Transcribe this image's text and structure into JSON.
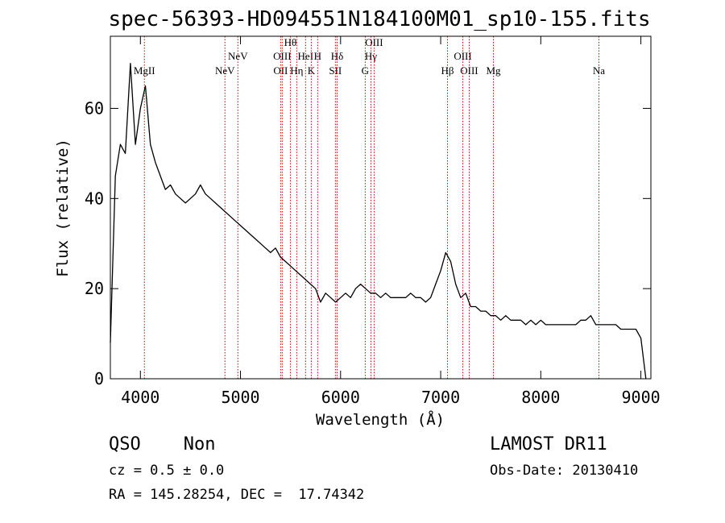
{
  "chart_data": {
    "type": "line",
    "title": "spec-56393-HD094551N184100M01_sp10-155.fits",
    "x_label": "Wavelength (Å)",
    "y_label": "Flux (relative)",
    "xlim": [
      3700,
      9100
    ],
    "ylim": [
      0,
      76
    ],
    "xticks": [
      4000,
      5000,
      6000,
      7000,
      8000,
      9000
    ],
    "yticks": [
      0,
      20,
      40,
      60
    ],
    "x": [
      3700,
      3750,
      3800,
      3850,
      3900,
      3950,
      4000,
      4050,
      4100,
      4150,
      4200,
      4250,
      4300,
      4350,
      4400,
      4450,
      4500,
      4550,
      4600,
      4650,
      4700,
      4750,
      4800,
      4850,
      4900,
      4950,
      5000,
      5050,
      5100,
      5150,
      5200,
      5250,
      5300,
      5350,
      5400,
      5450,
      5500,
      5550,
      5600,
      5650,
      5700,
      5750,
      5800,
      5850,
      5900,
      5950,
      6000,
      6050,
      6100,
      6150,
      6200,
      6250,
      6300,
      6350,
      6400,
      6450,
      6500,
      6550,
      6600,
      6650,
      6700,
      6750,
      6800,
      6850,
      6900,
      6950,
      7000,
      7050,
      7100,
      7150,
      7200,
      7250,
      7300,
      7350,
      7400,
      7450,
      7500,
      7550,
      7600,
      7650,
      7700,
      7750,
      7800,
      7850,
      7900,
      7950,
      8000,
      8050,
      8100,
      8150,
      8200,
      8250,
      8300,
      8350,
      8400,
      8450,
      8500,
      8550,
      8600,
      8650,
      8700,
      8750,
      8800,
      8850,
      8900,
      8950,
      9000,
      9050
    ],
    "series": [
      {
        "name": "flux",
        "color": "#000000",
        "values": [
          8,
          45,
          52,
          50,
          70,
          52,
          60,
          65,
          52,
          48,
          45,
          42,
          43,
          41,
          40,
          39,
          40,
          41,
          43,
          41,
          40,
          39,
          38,
          37,
          36,
          35,
          34,
          33,
          32,
          31,
          30,
          29,
          28,
          29,
          27,
          26,
          25,
          24,
          23,
          22,
          21,
          20,
          17,
          19,
          18,
          17,
          18,
          19,
          18,
          20,
          21,
          20,
          19,
          19,
          18,
          19,
          18,
          18,
          18,
          18,
          19,
          18,
          18,
          17,
          18,
          21,
          24,
          28,
          26,
          21,
          18,
          19,
          16,
          16,
          15,
          15,
          14,
          14,
          13,
          14,
          13,
          13,
          13,
          12,
          13,
          12,
          13,
          12,
          12,
          12,
          12,
          12,
          12,
          12,
          13,
          13,
          14,
          12,
          12,
          12,
          12,
          12,
          11,
          11,
          11,
          11,
          9,
          0
        ]
      }
    ],
    "line_color": "#cc0000",
    "lines": [
      {
        "label": "MgII",
        "wavelength": 4040
      },
      {
        "label": "NeV",
        "wavelength": 4845
      },
      {
        "label": "NeV",
        "wavelength": 4974
      },
      {
        "label": "OII",
        "wavelength": 5401
      },
      {
        "label": "OIII",
        "wavelength": 5417
      },
      {
        "label": "Hθ",
        "wavelength": 5498
      },
      {
        "label": "Hη",
        "wavelength": 5562
      },
      {
        "label": "HeI",
        "wavelength": 5650
      },
      {
        "label": "K",
        "wavelength": 5707
      },
      {
        "label": "H",
        "wavelength": 5771
      },
      {
        "label": "SII",
        "wavelength": 5948
      },
      {
        "label": "Hδ",
        "wavelength": 5965
      },
      {
        "label": "G",
        "wavelength": 6246
      },
      {
        "label": "Hγ",
        "wavelength": 6303
      },
      {
        "label": "OIII",
        "wavelength": 6335
      },
      {
        "label": "Hβ",
        "wavelength": 7068
      },
      {
        "label": "OIII",
        "wavelength": 7221
      },
      {
        "label": "OIII",
        "wavelength": 7285
      },
      {
        "label": "Mg",
        "wavelength": 7527
      },
      {
        "label": "Na",
        "wavelength": 8581
      }
    ],
    "annotations": [
      "QSO    Non",
      "cz = 0.5 ± 0.0",
      "RA = 145.28254, DEC =  17.74342",
      "LAMOST DR11",
      "Obs-Date: 20130410"
    ]
  }
}
